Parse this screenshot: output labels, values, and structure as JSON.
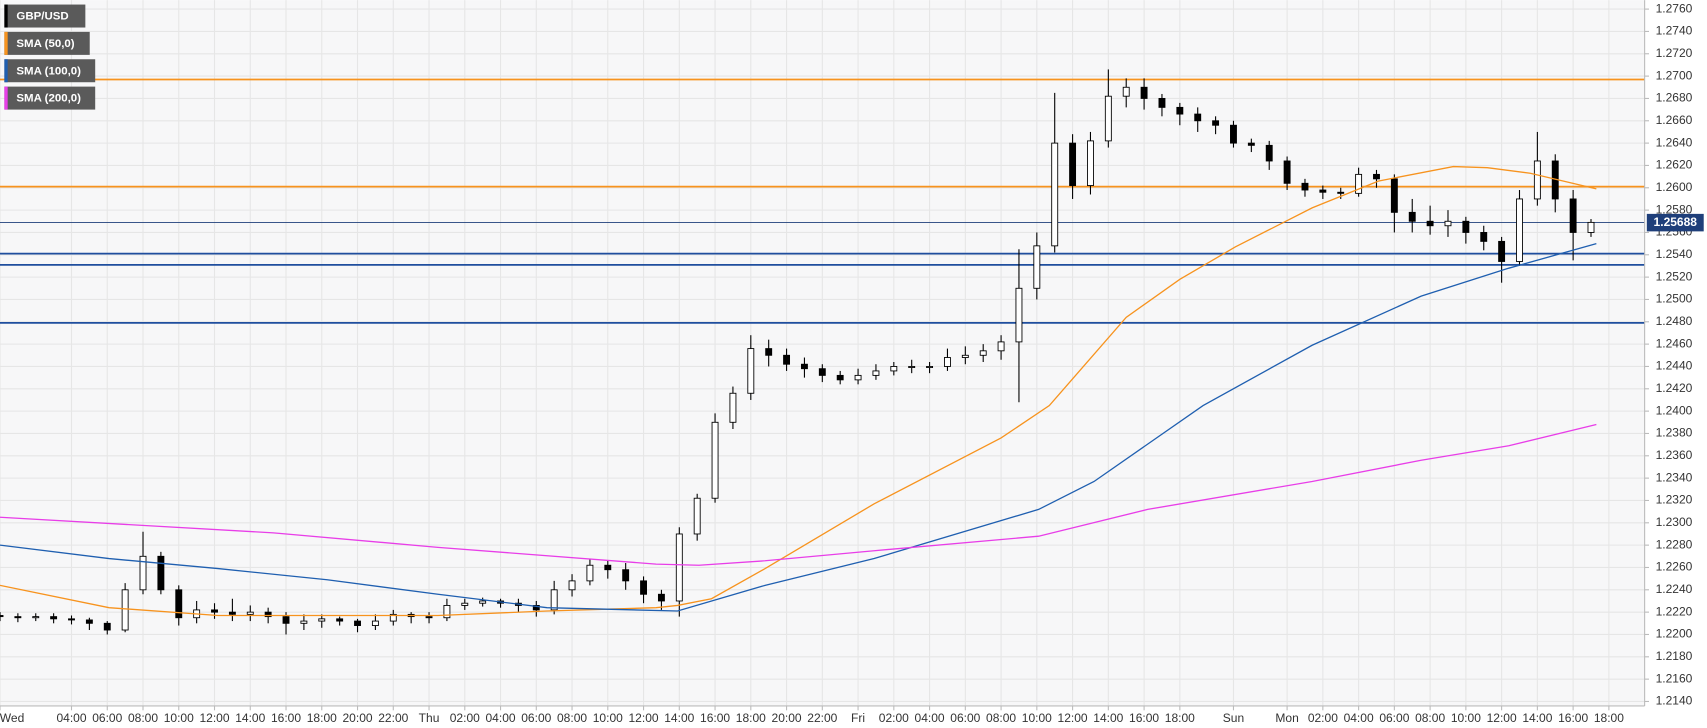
{
  "chart_data": {
    "type": "candlestick",
    "name": "GBP/USD",
    "up_color": "#ffffff",
    "down_color": "#000000",
    "x": [
      0,
      1,
      2,
      3,
      4,
      5,
      6,
      7,
      8,
      9,
      10,
      11,
      12,
      13,
      14,
      15,
      16,
      17,
      18,
      19,
      20,
      21,
      22,
      23,
      24,
      25,
      26,
      27,
      28,
      29,
      30,
      31,
      32,
      33,
      34,
      35,
      36,
      37,
      38,
      39,
      40,
      41,
      42,
      43,
      44,
      45,
      46,
      47,
      48,
      49,
      50,
      51,
      52,
      53,
      54,
      55,
      56,
      57,
      58,
      59,
      60,
      61,
      62,
      63,
      64,
      65,
      66,
      67,
      68,
      69,
      70,
      71,
      72,
      73,
      74,
      75,
      76,
      77,
      78,
      79,
      80,
      81,
      82,
      83,
      84,
      85,
      86,
      87,
      88,
      89
    ],
    "open": [
      1.2217,
      1.2216,
      1.2215,
      1.2216,
      1.2214,
      1.2213,
      1.221,
      1.2204,
      1.224,
      1.227,
      1.224,
      1.2215,
      1.2222,
      1.222,
      1.2218,
      1.222,
      1.2216,
      1.221,
      1.2212,
      1.2214,
      1.2212,
      1.2208,
      1.2212,
      1.2218,
      1.2216,
      1.2215,
      1.2226,
      1.2228,
      1.223,
      1.2228,
      1.2226,
      1.2222,
      1.224,
      1.2248,
      1.2262,
      1.2258,
      1.2248,
      1.2236,
      1.223,
      1.229,
      1.2322,
      1.239,
      1.2416,
      1.2456,
      1.245,
      1.2442,
      1.2438,
      1.2432,
      1.2428,
      1.2432,
      1.2436,
      1.244,
      1.244,
      1.244,
      1.2448,
      1.245,
      1.2454,
      1.2462,
      1.251,
      1.2548,
      1.264,
      1.2602,
      1.2642,
      1.2682,
      1.269,
      1.268,
      1.2672,
      1.2666,
      1.266,
      1.2656,
      1.264,
      1.2638,
      1.2624,
      1.2604,
      1.2598,
      1.2596,
      1.2595,
      1.2612,
      1.2608,
      1.2578,
      1.257,
      1.2566,
      1.257,
      1.256,
      1.2552,
      1.2534,
      1.259,
      1.2624,
      1.259,
      1.256
    ],
    "high": [
      1.222,
      1.2219,
      1.2219,
      1.2219,
      1.2217,
      1.2215,
      1.2212,
      1.2246,
      1.2292,
      1.2274,
      1.2244,
      1.223,
      1.2228,
      1.2232,
      1.2226,
      1.2224,
      1.222,
      1.2218,
      1.2218,
      1.2216,
      1.2214,
      1.2218,
      1.2222,
      1.222,
      1.222,
      1.2232,
      1.2232,
      1.2233,
      1.2232,
      1.2232,
      1.223,
      1.2248,
      1.2254,
      1.2268,
      1.2266,
      1.2264,
      1.2252,
      1.224,
      1.2296,
      1.2326,
      1.2398,
      1.2422,
      1.2468,
      1.2464,
      1.2456,
      1.2448,
      1.2442,
      1.2436,
      1.2438,
      1.2442,
      1.2444,
      1.2446,
      1.2444,
      1.2456,
      1.2458,
      1.246,
      1.2468,
      1.2545,
      1.256,
      1.2685,
      1.2648,
      1.265,
      1.2706,
      1.2698,
      1.2698,
      1.2684,
      1.2676,
      1.2672,
      1.2664,
      1.266,
      1.2644,
      1.2642,
      1.2628,
      1.2608,
      1.2602,
      1.26,
      1.2618,
      1.2616,
      1.2612,
      1.259,
      1.2584,
      1.258,
      1.2574,
      1.2566,
      1.2556,
      1.2598,
      1.265,
      1.263,
      1.2598,
      1.2572
    ],
    "low": [
      1.2212,
      1.2211,
      1.2212,
      1.221,
      1.2209,
      1.2204,
      1.22,
      1.2202,
      1.2236,
      1.2236,
      1.2208,
      1.221,
      1.2214,
      1.2212,
      1.2212,
      1.221,
      1.22,
      1.2204,
      1.2206,
      1.2208,
      1.2202,
      1.2204,
      1.2208,
      1.221,
      1.221,
      1.2212,
      1.2222,
      1.2225,
      1.2224,
      1.222,
      1.2216,
      1.2218,
      1.2234,
      1.2244,
      1.225,
      1.224,
      1.2228,
      1.2222,
      1.2216,
      1.2284,
      1.2318,
      1.2384,
      1.241,
      1.244,
      1.2436,
      1.243,
      1.2426,
      1.2424,
      1.2424,
      1.2428,
      1.2432,
      1.2434,
      1.2434,
      1.2436,
      1.2442,
      1.2444,
      1.2446,
      1.2408,
      1.25,
      1.2542,
      1.259,
      1.2594,
      1.2636,
      1.2672,
      1.267,
      1.2664,
      1.2656,
      1.265,
      1.2648,
      1.2636,
      1.2632,
      1.2616,
      1.2598,
      1.2592,
      1.259,
      1.259,
      1.2592,
      1.26,
      1.256,
      1.256,
      1.2558,
      1.2556,
      1.255,
      1.2544,
      1.2515,
      1.253,
      1.2584,
      1.2578,
      1.2535,
      1.2556
    ],
    "close": [
      1.2216,
      1.2215,
      1.2216,
      1.2214,
      1.2213,
      1.221,
      1.2204,
      1.224,
      1.227,
      1.224,
      1.2215,
      1.2222,
      1.222,
      1.2218,
      1.222,
      1.2216,
      1.221,
      1.2212,
      1.2214,
      1.2212,
      1.2208,
      1.2212,
      1.2218,
      1.2216,
      1.2215,
      1.2226,
      1.2228,
      1.223,
      1.2228,
      1.2226,
      1.2222,
      1.224,
      1.2248,
      1.2262,
      1.2258,
      1.2248,
      1.2236,
      1.223,
      1.229,
      1.2322,
      1.239,
      1.2416,
      1.2456,
      1.245,
      1.2442,
      1.2438,
      1.2432,
      1.2428,
      1.2432,
      1.2436,
      1.244,
      1.244,
      1.244,
      1.2448,
      1.245,
      1.2454,
      1.2462,
      1.251,
      1.2548,
      1.264,
      1.2602,
      1.2642,
      1.2682,
      1.269,
      1.268,
      1.2672,
      1.2666,
      1.266,
      1.2656,
      1.264,
      1.2638,
      1.2624,
      1.2604,
      1.2598,
      1.2596,
      1.2595,
      1.2612,
      1.2608,
      1.2578,
      1.257,
      1.2566,
      1.257,
      1.256,
      1.2552,
      1.2534,
      1.259,
      1.2624,
      1.259,
      1.256,
      1.2569
    ],
    "series": [
      {
        "name": "SMA (50,0)",
        "color": "#f7931e",
        "x": [
          0,
          6.1,
          12.2,
          24.5,
          30.6,
          36.7,
          37.9,
          39.8,
          42.8,
          48.9,
          56,
          58.7,
          63,
          66,
          69.1,
          73.4,
          77.1,
          81.3,
          83.2,
          85.6,
          89.3
        ],
        "values": [
          1.2244,
          1.2224,
          1.2217,
          1.2217,
          1.2221,
          1.2224,
          1.2226,
          1.2232,
          1.2259,
          1.2317,
          1.2376,
          1.2405,
          1.2484,
          1.2518,
          1.2547,
          1.2582,
          1.2606,
          1.2619,
          1.2618,
          1.2613,
          1.2599
        ]
      },
      {
        "name": "SMA (100,0)",
        "color": "#1f5fb0",
        "x": [
          0,
          6.1,
          12.2,
          18.3,
          24.5,
          30.6,
          37.9,
          42.8,
          48.9,
          58.1,
          61.2,
          67.3,
          73.4,
          79.5,
          84.4,
          89.3
        ],
        "values": [
          1.228,
          1.2268,
          1.2259,
          1.2249,
          1.2236,
          1.2224,
          1.2221,
          1.2244,
          1.2268,
          1.2312,
          1.2337,
          1.2405,
          1.2459,
          1.2503,
          1.2528,
          1.255
        ]
      },
      {
        "name": "SMA (200,0)",
        "color": "#e83ee8",
        "x": [
          0,
          15.3,
          24.5,
          36.7,
          39.1,
          42.8,
          48.9,
          58.1,
          64.2,
          73.4,
          79.5,
          84.4,
          89.3
        ],
        "values": [
          1.2305,
          1.2291,
          1.2278,
          1.2263,
          1.2262,
          1.2266,
          1.2275,
          1.2288,
          1.2312,
          1.2337,
          1.2356,
          1.2369,
          1.2388
        ]
      }
    ],
    "levels": [
      {
        "value": 1.2697,
        "color": "#f7931e"
      },
      {
        "value": 1.2601,
        "color": "#f7931e"
      },
      {
        "value": 1.2541,
        "color": "#1f4e9e"
      },
      {
        "value": 1.2531,
        "color": "#1f4e9e"
      },
      {
        "value": 1.2479,
        "color": "#1f4e9e"
      }
    ],
    "current_price": 1.25688,
    "current_price_color": "#1f3f7a",
    "grid": true,
    "xlim": [
      0,
      92
    ],
    "ylim": [
      1.2136,
      1.2768
    ],
    "xticks": [
      {
        "value": 0,
        "label": "Wed"
      },
      {
        "value": 4,
        "label": "04:00"
      },
      {
        "value": 6,
        "label": "06:00"
      },
      {
        "value": 8,
        "label": "08:00"
      },
      {
        "value": 10,
        "label": "10:00"
      },
      {
        "value": 12,
        "label": "12:00"
      },
      {
        "value": 14,
        "label": "14:00"
      },
      {
        "value": 16,
        "label": "16:00"
      },
      {
        "value": 18,
        "label": "18:00"
      },
      {
        "value": 20,
        "label": "20:00"
      },
      {
        "value": 22,
        "label": "22:00"
      },
      {
        "value": 24,
        "label": "Thu"
      },
      {
        "value": 26,
        "label": "02:00"
      },
      {
        "value": 28,
        "label": "04:00"
      },
      {
        "value": 30,
        "label": "06:00"
      },
      {
        "value": 32,
        "label": "08:00"
      },
      {
        "value": 34,
        "label": "10:00"
      },
      {
        "value": 36,
        "label": "12:00"
      },
      {
        "value": 38,
        "label": "14:00"
      },
      {
        "value": 40,
        "label": "16:00"
      },
      {
        "value": 42,
        "label": "18:00"
      },
      {
        "value": 44,
        "label": "20:00"
      },
      {
        "value": 46,
        "label": "22:00"
      },
      {
        "value": 48,
        "label": "Fri"
      },
      {
        "value": 50,
        "label": "02:00"
      },
      {
        "value": 52,
        "label": "04:00"
      },
      {
        "value": 54,
        "label": "06:00"
      },
      {
        "value": 56,
        "label": "08:00"
      },
      {
        "value": 58,
        "label": "10:00"
      },
      {
        "value": 60,
        "label": "12:00"
      },
      {
        "value": 62,
        "label": "14:00"
      },
      {
        "value": 64,
        "label": "16:00"
      },
      {
        "value": 66,
        "label": "18:00"
      },
      {
        "value": 69,
        "label": "Sun"
      },
      {
        "value": 72,
        "label": "Mon"
      },
      {
        "value": 74,
        "label": "02:00"
      },
      {
        "value": 76,
        "label": "04:00"
      },
      {
        "value": 78,
        "label": "06:00"
      },
      {
        "value": 80,
        "label": "08:00"
      },
      {
        "value": 82,
        "label": "10:00"
      },
      {
        "value": 84,
        "label": "12:00"
      },
      {
        "value": 86,
        "label": "14:00"
      },
      {
        "value": 88,
        "label": "16:00"
      },
      {
        "value": 90,
        "label": "18:00"
      }
    ],
    "yticks": [
      {
        "value": 1.214,
        "label": "1.2140"
      },
      {
        "value": 1.216,
        "label": "1.2160"
      },
      {
        "value": 1.218,
        "label": "1.2180"
      },
      {
        "value": 1.22,
        "label": "1.2200"
      },
      {
        "value": 1.222,
        "label": "1.2220"
      },
      {
        "value": 1.224,
        "label": "1.2240"
      },
      {
        "value": 1.226,
        "label": "1.2260"
      },
      {
        "value": 1.228,
        "label": "1.2280"
      },
      {
        "value": 1.23,
        "label": "1.2300"
      },
      {
        "value": 1.232,
        "label": "1.2320"
      },
      {
        "value": 1.234,
        "label": "1.2340"
      },
      {
        "value": 1.236,
        "label": "1.2360"
      },
      {
        "value": 1.238,
        "label": "1.2380"
      },
      {
        "value": 1.24,
        "label": "1.2400"
      },
      {
        "value": 1.242,
        "label": "1.2420"
      },
      {
        "value": 1.244,
        "label": "1.2440"
      },
      {
        "value": 1.246,
        "label": "1.2460"
      },
      {
        "value": 1.248,
        "label": "1.2480"
      },
      {
        "value": 1.25,
        "label": "1.2500"
      },
      {
        "value": 1.252,
        "label": "1.2520"
      },
      {
        "value": 1.254,
        "label": "1.2540"
      },
      {
        "value": 1.256,
        "label": "1.2560"
      },
      {
        "value": 1.258,
        "label": "1.2580"
      },
      {
        "value": 1.26,
        "label": "1.2600"
      },
      {
        "value": 1.262,
        "label": "1.2620"
      },
      {
        "value": 1.264,
        "label": "1.2640"
      },
      {
        "value": 1.266,
        "label": "1.2660"
      },
      {
        "value": 1.268,
        "label": "1.2680"
      },
      {
        "value": 1.27,
        "label": "1.2700"
      },
      {
        "value": 1.272,
        "label": "1.2720"
      },
      {
        "value": 1.274,
        "label": "1.2740"
      },
      {
        "value": 1.276,
        "label": "1.2760"
      }
    ]
  }
}
